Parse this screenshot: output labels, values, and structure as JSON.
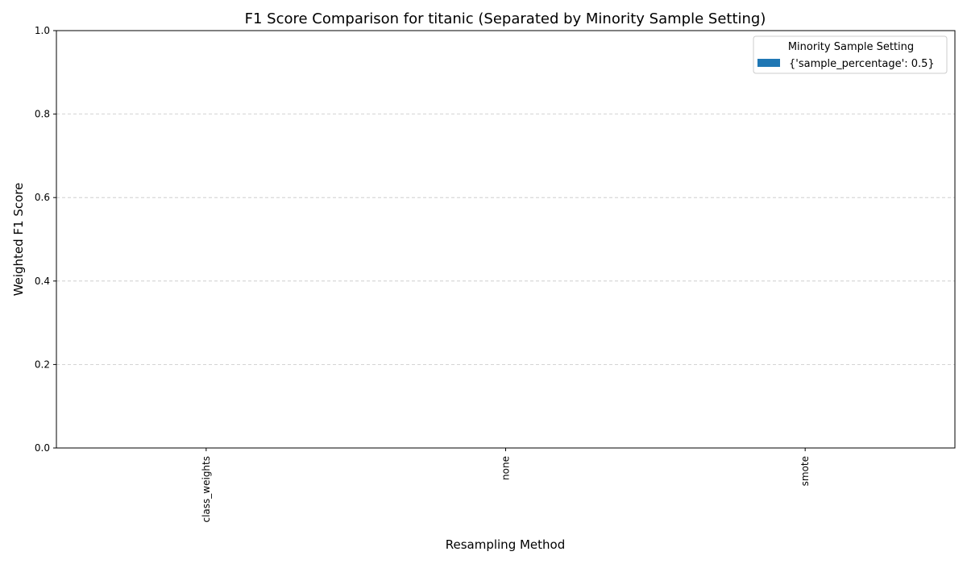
{
  "chart_data": {
    "type": "bar",
    "title": "F1 Score Comparison for titanic (Separated by Minority Sample Setting)",
    "xlabel": "Resampling Method",
    "ylabel": "Weighted F1 Score",
    "categories": [
      "class_weights",
      "none",
      "smote"
    ],
    "ylim": [
      0,
      1
    ],
    "yticks": [
      "0.0",
      "0.2",
      "0.4",
      "0.6",
      "0.8",
      "1.0"
    ],
    "grid": "y-dashed",
    "legend": {
      "title": "Minority Sample Setting",
      "placement": "top-right"
    },
    "series": [
      {
        "name": "{'sample_percentage': 0.5}",
        "color": "#1f77b4",
        "values": [
          0,
          0,
          0
        ]
      }
    ]
  }
}
